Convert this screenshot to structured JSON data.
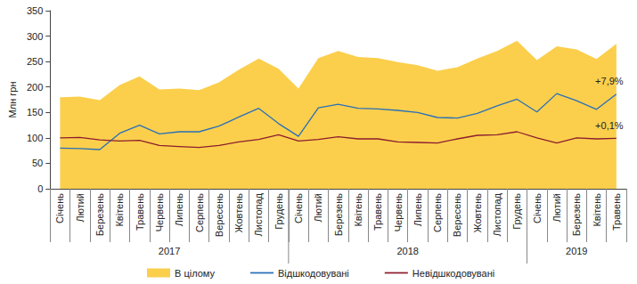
{
  "chart_data": {
    "type": "line",
    "y_label": "Млн грн",
    "categories": [
      "Січень",
      "Лютий",
      "Березень",
      "Квітень",
      "Травень",
      "Червень",
      "Липень",
      "Серпень",
      "Вересень",
      "Жовтень",
      "Листопад",
      "Грудень",
      "Січень",
      "Лютий",
      "Березень",
      "Квітень",
      "Травень",
      "Червень",
      "Липень",
      "Серпень",
      "Вересень",
      "Жовтень",
      "Листопад",
      "Грудень",
      "Січень",
      "Лютий",
      "Березень",
      "Квітень",
      "Травень"
    ],
    "category_groups": [
      {
        "label": "2017",
        "span": 12
      },
      {
        "label": "2018",
        "span": 12
      },
      {
        "label": "2019",
        "span": 5
      }
    ],
    "series": [
      {
        "name": "В цілому",
        "type": "area",
        "color": "#fbcf4c",
        "values": [
          180,
          181,
          174,
          204,
          221,
          195,
          197,
          194,
          209,
          234,
          256,
          236,
          197,
          257,
          271,
          259,
          257,
          249,
          243,
          232,
          239,
          256,
          271,
          291,
          253,
          280,
          274,
          255,
          285
        ]
      },
      {
        "name": "Відшкодовувані",
        "type": "line",
        "color": "#2a6fb8",
        "values": [
          80,
          79,
          77,
          109,
          125,
          108,
          112,
          112,
          123,
          141,
          158,
          128,
          103,
          159,
          166,
          158,
          157,
          154,
          150,
          140,
          139,
          148,
          163,
          176,
          151,
          187,
          173,
          156,
          186
        ]
      },
      {
        "name": "Невідшкодовувані",
        "type": "line",
        "color": "#8c1c2e",
        "values": [
          100,
          101,
          96,
          94,
          95,
          85,
          83,
          81,
          85,
          92,
          97,
          106,
          94,
          97,
          102,
          98,
          98,
          92,
          91,
          90,
          98,
          105,
          106,
          112,
          100,
          90,
          100,
          98,
          99
        ]
      }
    ],
    "annotations": [
      {
        "series": "Відшкодовувані",
        "text": "+7,9%"
      },
      {
        "series": "Невідшкодовувані",
        "text": "+0,1%"
      }
    ],
    "ylim": [
      0,
      350
    ],
    "yticks": [
      0,
      50,
      100,
      150,
      200,
      250,
      300,
      350
    ],
    "grid": false,
    "legend": "bottom"
  }
}
